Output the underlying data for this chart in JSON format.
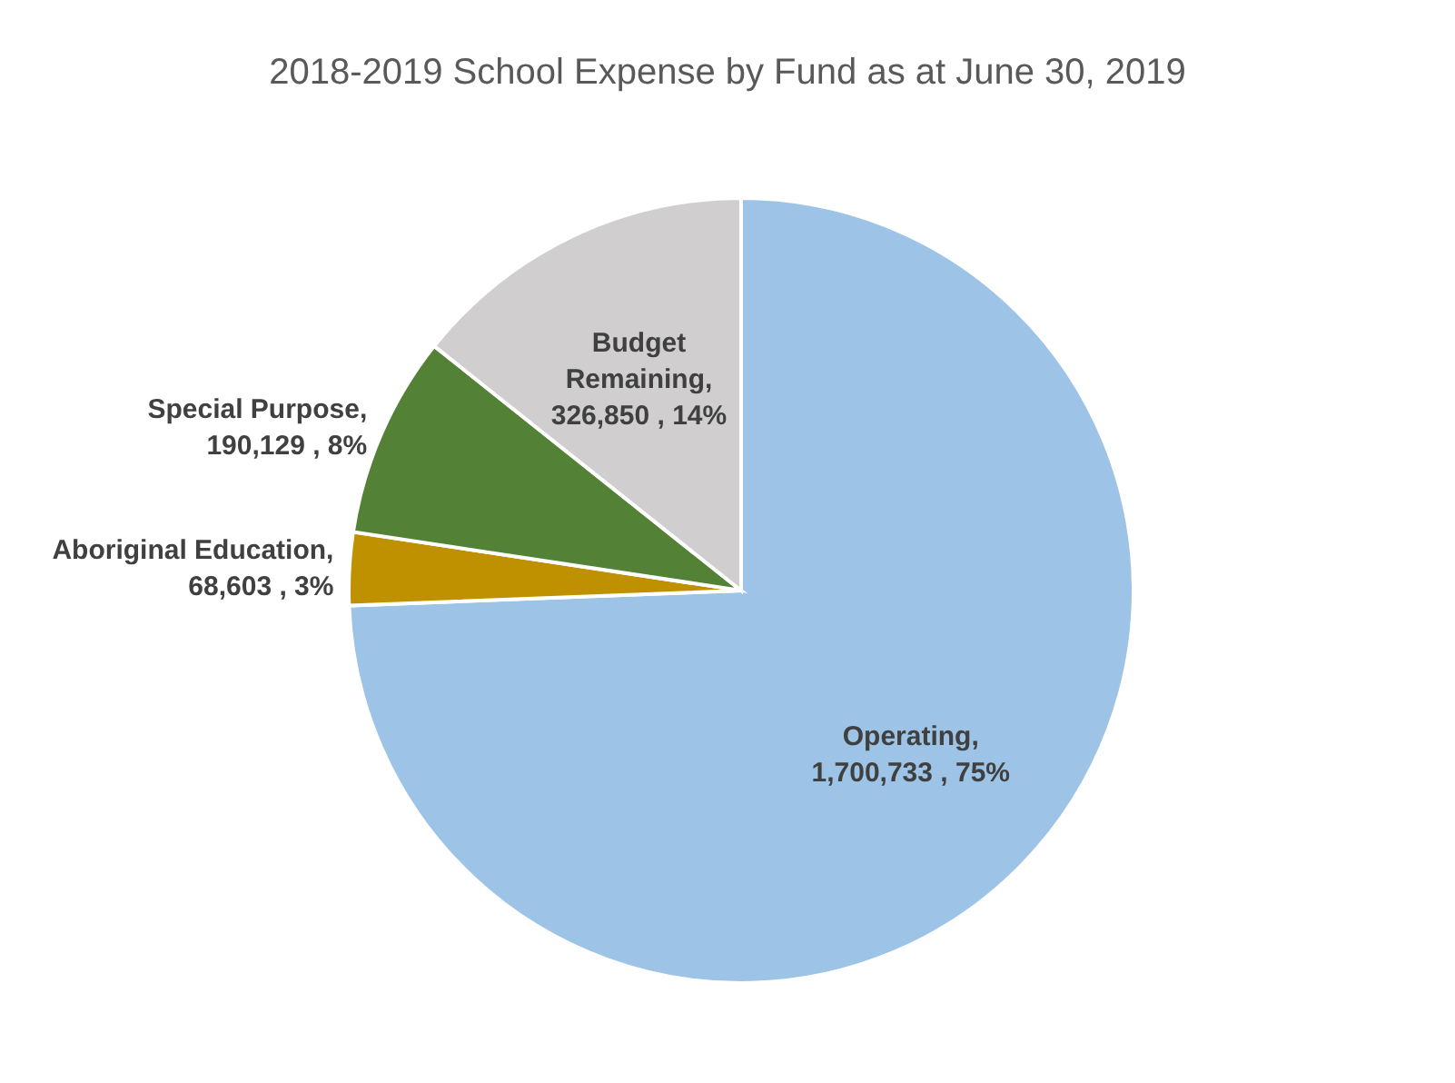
{
  "chart_data": {
    "type": "pie",
    "title": "2018-2019 School Expense by Fund as at June 30, 2019",
    "categories": [
      "Operating",
      "Aboriginal Education",
      "Special Purpose",
      "Budget Remaining"
    ],
    "values": [
      1700733,
      68603,
      190129,
      326850
    ],
    "value_labels": [
      ",\n1,700,733 , 75%",
      ",\n68,603 , 3%",
      ",\n190,129 , 8%",
      ",\n326,850 , 14%"
    ],
    "colors": [
      "#9dc3e6",
      "#bf9000",
      "#538135",
      "#d0cece"
    ],
    "legend": false
  }
}
